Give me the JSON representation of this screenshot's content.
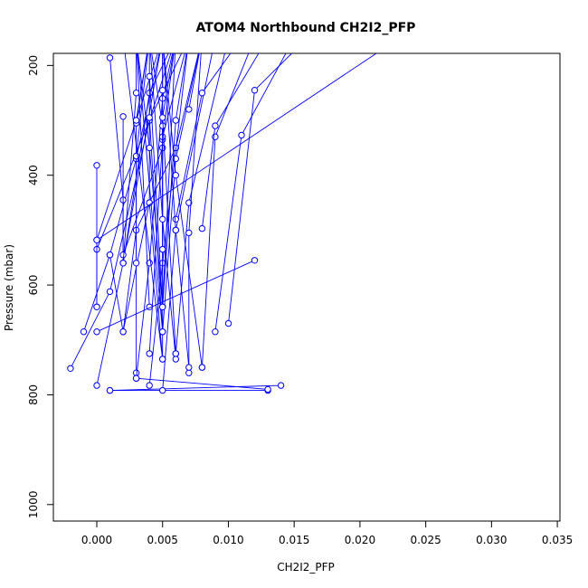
{
  "chart_data": {
    "type": "line",
    "title": "ATOM4 Northbound CH2I2_PFP",
    "xlabel": "CH2I2_PFP",
    "ylabel": "Pressure (mbar)",
    "xlim": [
      -0.0033,
      0.0352
    ],
    "ylim": [
      1030,
      178
    ],
    "y_reversed": true,
    "x_ticks": [
      "0.000",
      "0.005",
      "0.010",
      "0.015",
      "0.020",
      "0.025",
      "0.030",
      "0.035"
    ],
    "x_tick_values": [
      0,
      0.005,
      0.01,
      0.015,
      0.02,
      0.025,
      0.03,
      0.035
    ],
    "y_ticks": [
      "200",
      "400",
      "600",
      "800",
      "1000"
    ],
    "y_tick_values": [
      200,
      400,
      600,
      800,
      1000
    ],
    "series_color": "#0000ff",
    "series": [
      {
        "values": [
          [
            -0.002,
            752
          ],
          [
            0.001,
            612
          ],
          [
            0.004,
            300
          ],
          [
            0.007,
            150
          ]
        ]
      },
      {
        "values": [
          [
            -0.001,
            685
          ],
          [
            0.001,
            545
          ],
          [
            0.003,
            370
          ],
          [
            0.005,
            150
          ]
        ]
      },
      {
        "values": [
          [
            0.0,
            783
          ],
          [
            0.002,
            560
          ],
          [
            0.004,
            250
          ],
          [
            0.006,
            150
          ]
        ]
      },
      {
        "values": [
          [
            0.0,
            640
          ],
          [
            0.0,
            518
          ],
          [
            0.003,
            300
          ],
          [
            0.005,
            150
          ]
        ]
      },
      {
        "values": [
          [
            0.0,
            535
          ],
          [
            0.004,
            300
          ],
          [
            0.006,
            150
          ]
        ]
      },
      {
        "values": [
          [
            0.0,
            382
          ],
          [
            0.0,
            640
          ]
        ]
      },
      {
        "values": [
          [
            0.001,
            792
          ],
          [
            0.013,
            792
          ]
        ]
      },
      {
        "values": [
          [
            0.001,
            792
          ],
          [
            0.014,
            783
          ]
        ]
      },
      {
        "values": [
          [
            0.001,
            186
          ],
          [
            0.002,
            445
          ],
          [
            0.002,
            560
          ],
          [
            0.005,
            150
          ]
        ]
      },
      {
        "values": [
          [
            0.001,
            545
          ],
          [
            0.002,
            685
          ],
          [
            0.004,
            450
          ],
          [
            0.004,
            150
          ]
        ]
      },
      {
        "values": [
          [
            0.002,
            293
          ],
          [
            0.002,
            545
          ],
          [
            0.005,
            350
          ],
          [
            0.005,
            150
          ]
        ]
      },
      {
        "values": [
          [
            0.002,
            685
          ],
          [
            0.003,
            500
          ],
          [
            0.006,
            350
          ],
          [
            0.008,
            150
          ]
        ]
      },
      {
        "values": [
          [
            0.003,
            760
          ],
          [
            0.003,
            305
          ],
          [
            0.004,
            150
          ]
        ]
      },
      {
        "values": [
          [
            0.003,
            770
          ],
          [
            0.004,
            560
          ],
          [
            0.005,
            260
          ],
          [
            0.006,
            150
          ]
        ]
      },
      {
        "values": [
          [
            0.003,
            560
          ],
          [
            0.003,
            365
          ],
          [
            0.004,
            150
          ]
        ]
      },
      {
        "values": [
          [
            0.004,
            783
          ],
          [
            0.005,
            560
          ],
          [
            0.007,
            150
          ]
        ]
      },
      {
        "values": [
          [
            0.004,
            725
          ],
          [
            0.005,
            335
          ],
          [
            0.006,
            150
          ]
        ]
      },
      {
        "values": [
          [
            0.004,
            640
          ],
          [
            0.003,
            150
          ]
        ]
      },
      {
        "values": [
          [
            0.004,
            220
          ],
          [
            0.005,
            640
          ],
          [
            0.006,
            150
          ]
        ]
      },
      {
        "values": [
          [
            0.004,
            295
          ],
          [
            0.005,
            685
          ],
          [
            0.003,
            150
          ]
        ]
      },
      {
        "values": [
          [
            0.004,
            450
          ],
          [
            0.005,
            735
          ],
          [
            0.002,
            150
          ]
        ]
      },
      {
        "values": [
          [
            0.005,
            792
          ],
          [
            0.006,
            500
          ],
          [
            0.009,
            150
          ]
        ]
      },
      {
        "values": [
          [
            0.005,
            735
          ],
          [
            0.005,
            330
          ],
          [
            0.007,
            150
          ]
        ]
      },
      {
        "values": [
          [
            0.005,
            640
          ],
          [
            0.005,
            245
          ],
          [
            0.005,
            150
          ]
        ]
      },
      {
        "values": [
          [
            0.005,
            535
          ],
          [
            0.005,
            310
          ],
          [
            0.004,
            150
          ]
        ]
      },
      {
        "values": [
          [
            0.005,
            685
          ],
          [
            0.006,
            370
          ],
          [
            0.008,
            150
          ]
        ]
      },
      {
        "values": [
          [
            0.005,
            640
          ],
          [
            0.004,
            350
          ],
          [
            0.003,
            150
          ]
        ]
      },
      {
        "values": [
          [
            0.006,
            725
          ],
          [
            0.005,
            295
          ],
          [
            0.006,
            150
          ]
        ]
      },
      {
        "values": [
          [
            0.006,
            735
          ],
          [
            0.005,
            480
          ],
          [
            0.004,
            150
          ]
        ]
      },
      {
        "values": [
          [
            0.006,
            725
          ],
          [
            0.007,
            450
          ],
          [
            0.01,
            150
          ]
        ]
      },
      {
        "values": [
          [
            0.006,
            480
          ],
          [
            0.008,
            250
          ],
          [
            0.011,
            150
          ]
        ]
      },
      {
        "values": [
          [
            0.007,
            760
          ],
          [
            0.007,
            505
          ],
          [
            0.008,
            150
          ]
        ]
      },
      {
        "values": [
          [
            0.007,
            280
          ],
          [
            0.008,
            150
          ]
        ]
      },
      {
        "values": [
          [
            0.007,
            750
          ],
          [
            0.006,
            500
          ],
          [
            0.005,
            150
          ]
        ]
      },
      {
        "values": [
          [
            0.008,
            750
          ],
          [
            0.009,
            330
          ],
          [
            0.012,
            150
          ]
        ]
      },
      {
        "values": [
          [
            0.008,
            497
          ],
          [
            0.009,
            310
          ],
          [
            0.013,
            150
          ]
        ]
      },
      {
        "values": [
          [
            0.009,
            685
          ],
          [
            0.011,
            327
          ],
          [
            0.015,
            150
          ]
        ]
      },
      {
        "values": [
          [
            0.01,
            670
          ],
          [
            0.012,
            245
          ],
          [
            0.016,
            150
          ]
        ]
      },
      {
        "values": [
          [
            0.012,
            555
          ],
          [
            0.0,
            685
          ]
        ]
      },
      {
        "values": [
          [
            0.0,
            518
          ],
          [
            0.023,
            150
          ]
        ]
      },
      {
        "values": [
          [
            0.003,
            770
          ],
          [
            0.013,
            790
          ]
        ]
      },
      {
        "values": [
          [
            0.008,
            750
          ],
          [
            0.006,
            400
          ],
          [
            0.005,
            150
          ]
        ]
      },
      {
        "values": [
          [
            0.002,
            560
          ],
          [
            0.003,
            250
          ],
          [
            0.003,
            150
          ]
        ]
      },
      {
        "values": [
          [
            0.005,
            640
          ],
          [
            0.006,
            300
          ],
          [
            0.007,
            150
          ]
        ]
      },
      {
        "values": [
          [
            0.003,
            300
          ],
          [
            0.004,
            150
          ]
        ]
      }
    ]
  }
}
